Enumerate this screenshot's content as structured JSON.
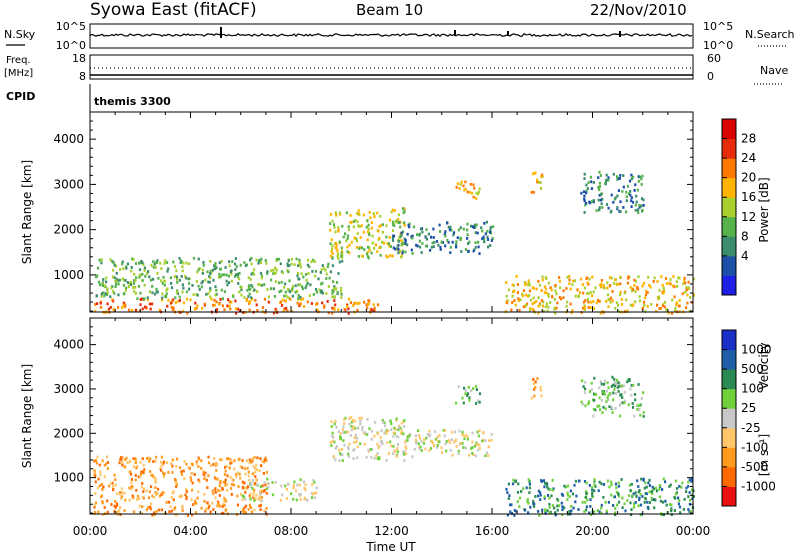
{
  "header": {
    "title": "Syowa East (fitACF)",
    "beam": "Beam 10",
    "date": "22/Nov/2010"
  },
  "aux": {
    "nsky_label": "N.Sky",
    "nsky_ticks": [
      "10^5",
      "10^0"
    ],
    "nsearch_label": "N.Search",
    "nsearch_ticks": [
      "10^5",
      "10^0"
    ],
    "freq_label_1": "Freq.",
    "freq_label_2": "[MHz]",
    "freq_ticks": [
      "18",
      "8"
    ],
    "nave_label": "Nave",
    "nave_ticks": [
      "60",
      "0"
    ],
    "cpid_label": "CPID",
    "cpid_value": "themis 3300"
  },
  "x_ticks": [
    "00:00",
    "04:00",
    "08:00",
    "12:00",
    "16:00",
    "20:00",
    "00:00"
  ],
  "x_axis_label": "Time UT",
  "y_axis_label": "Slant Range [km]",
  "y_ticks": [
    "4000",
    "3000",
    "2000",
    "1000"
  ],
  "colors": {
    "power_scale": [
      "#1e1ee6",
      "#1c4fa8",
      "#3c8c6e",
      "#56b24a",
      "#a8d02e",
      "#ffb400",
      "#ff7800",
      "#e82b0a",
      "#d80000"
    ],
    "velocity_scale": [
      "#e81010",
      "#ff6a00",
      "#ff9a1c",
      "#ffc66a",
      "#c8c8c8",
      "#6fd03c",
      "#2a8a52",
      "#1f5fa8",
      "#1a2fc8"
    ]
  },
  "power_colorbar": {
    "label": "Power [dB]",
    "ticks": [
      "28",
      "24",
      "20",
      "16",
      "12",
      "8",
      "4"
    ]
  },
  "velocity_colorbar": {
    "label_main": "Velocity",
    "label_unit": "[m s⁻¹]",
    "ticks": [
      "1000",
      "500",
      "100",
      "25",
      "-25",
      "-100",
      "-500",
      "-1000"
    ]
  },
  "chart_data": [
    {
      "type": "heatmap",
      "panel": "power",
      "xlabel": "Time UT",
      "ylabel": "Slant Range [km]",
      "xlim": [
        0,
        24
      ],
      "ylim": [
        180,
        4600
      ],
      "colorbar": {
        "label": "Power [dB]",
        "range": [
          0,
          32
        ]
      },
      "regions": [
        {
          "x": [
            0.1,
            11.5
          ],
          "y": [
            180,
            500
          ],
          "value": 24
        },
        {
          "x": [
            0.2,
            10
          ],
          "y": [
            500,
            1400
          ],
          "value": 12
        },
        {
          "x": [
            9.5,
            12.5
          ],
          "y": [
            1400,
            2500
          ],
          "value": 16
        },
        {
          "x": [
            12,
            16
          ],
          "y": [
            1500,
            2200
          ],
          "value": 8
        },
        {
          "x": [
            14.5,
            15.5
          ],
          "y": [
            2700,
            3100
          ],
          "value": 18
        },
        {
          "x": [
            17.5,
            18
          ],
          "y": [
            2800,
            3300
          ],
          "value": 18
        },
        {
          "x": [
            19.5,
            22
          ],
          "y": [
            2400,
            3300
          ],
          "value": 8
        },
        {
          "x": [
            16.5,
            24
          ],
          "y": [
            180,
            1000
          ],
          "value": 20
        }
      ]
    },
    {
      "type": "heatmap",
      "panel": "velocity",
      "xlabel": "Time UT",
      "ylabel": "Slant Range [km]",
      "xlim": [
        0,
        24
      ],
      "ylim": [
        180,
        4600
      ],
      "colorbar": {
        "label": "Velocity [m s⁻¹]",
        "range": [
          -1000,
          1000
        ]
      },
      "regions": [
        {
          "x": [
            0.1,
            7
          ],
          "y": [
            180,
            1500
          ],
          "value": -100
        },
        {
          "x": [
            6,
            9
          ],
          "y": [
            500,
            1000
          ],
          "value": 0
        },
        {
          "x": [
            9.5,
            12.5
          ],
          "y": [
            1400,
            2400
          ],
          "value": 0
        },
        {
          "x": [
            12,
            16
          ],
          "y": [
            1500,
            2100
          ],
          "value": 0
        },
        {
          "x": [
            14.5,
            15.5
          ],
          "y": [
            2700,
            3100
          ],
          "value": 100
        },
        {
          "x": [
            17.5,
            18
          ],
          "y": [
            2800,
            3300
          ],
          "value": -100
        },
        {
          "x": [
            19.5,
            22
          ],
          "y": [
            2400,
            3300
          ],
          "value": 100
        },
        {
          "x": [
            16.5,
            24
          ],
          "y": [
            180,
            1000
          ],
          "value": 300
        }
      ]
    }
  ]
}
